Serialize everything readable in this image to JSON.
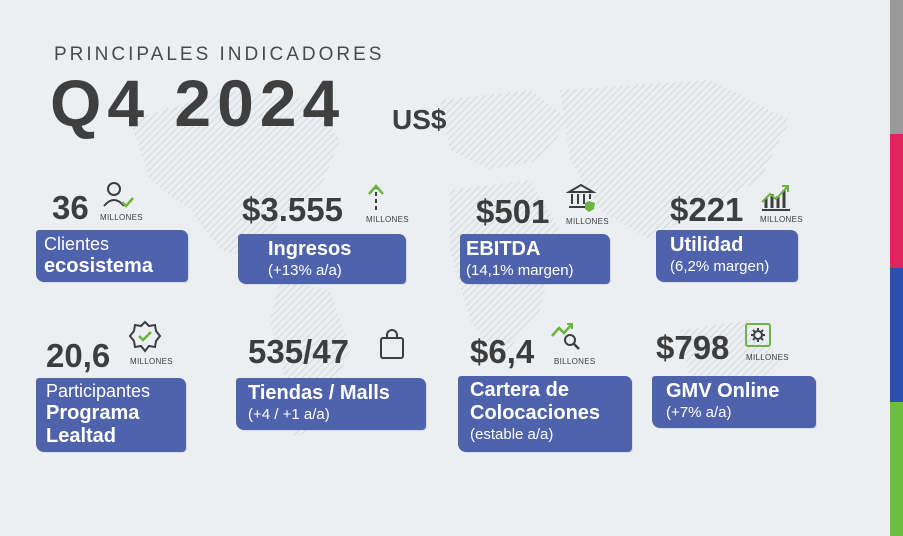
{
  "header": {
    "kicker": "PRINCIPALES INDICADORES",
    "title": "Q4 2024",
    "currency": "US$"
  },
  "colors": {
    "label_bg": "#4f63ad",
    "icon_green": "#6cb33f",
    "stripes": [
      "#9a9a9a",
      "#e0245e",
      "#2c4fb4",
      "#6cbf3c"
    ]
  },
  "cards": [
    {
      "value": "36",
      "unit": "MILLONES",
      "line1": "Clientes",
      "line2": "ecosistema",
      "icon": "user-check-icon"
    },
    {
      "value": "$3.555",
      "unit": "MILLONES",
      "line1": "Ingresos",
      "line2": "(+13% a/a)",
      "icon": "arrow-up-icon"
    },
    {
      "value": "$501",
      "unit": "MILLONES",
      "line1": "EBITDA",
      "line2": "(14,1% margen)",
      "icon": "bank-icon"
    },
    {
      "value": "$221",
      "unit": "MILLONES",
      "line1": "Utilidad",
      "line2": "(6,2% margen)",
      "icon": "chart-up-icon"
    },
    {
      "value": "20,6",
      "unit": "MILLONES",
      "line1": "Participantes",
      "line2": "Programa",
      "line3": "Lealtad",
      "icon": "badge-check-icon"
    },
    {
      "value": "535/47",
      "unit": "",
      "line1": "Tiendas / Malls",
      "line2": "(+4 / +1 a/a)",
      "icon": "shopping-bag-icon"
    },
    {
      "value": "$6,4",
      "unit": "BILLONES",
      "line1": "Cartera de",
      "line2": "Colocaciones",
      "line3": "(estable a/a)",
      "icon": "chart-search-icon"
    },
    {
      "value": "$798",
      "unit": "MILLONES",
      "line1": "GMV Online",
      "line2": "(+7% a/a)",
      "icon": "gear-screen-icon"
    }
  ]
}
